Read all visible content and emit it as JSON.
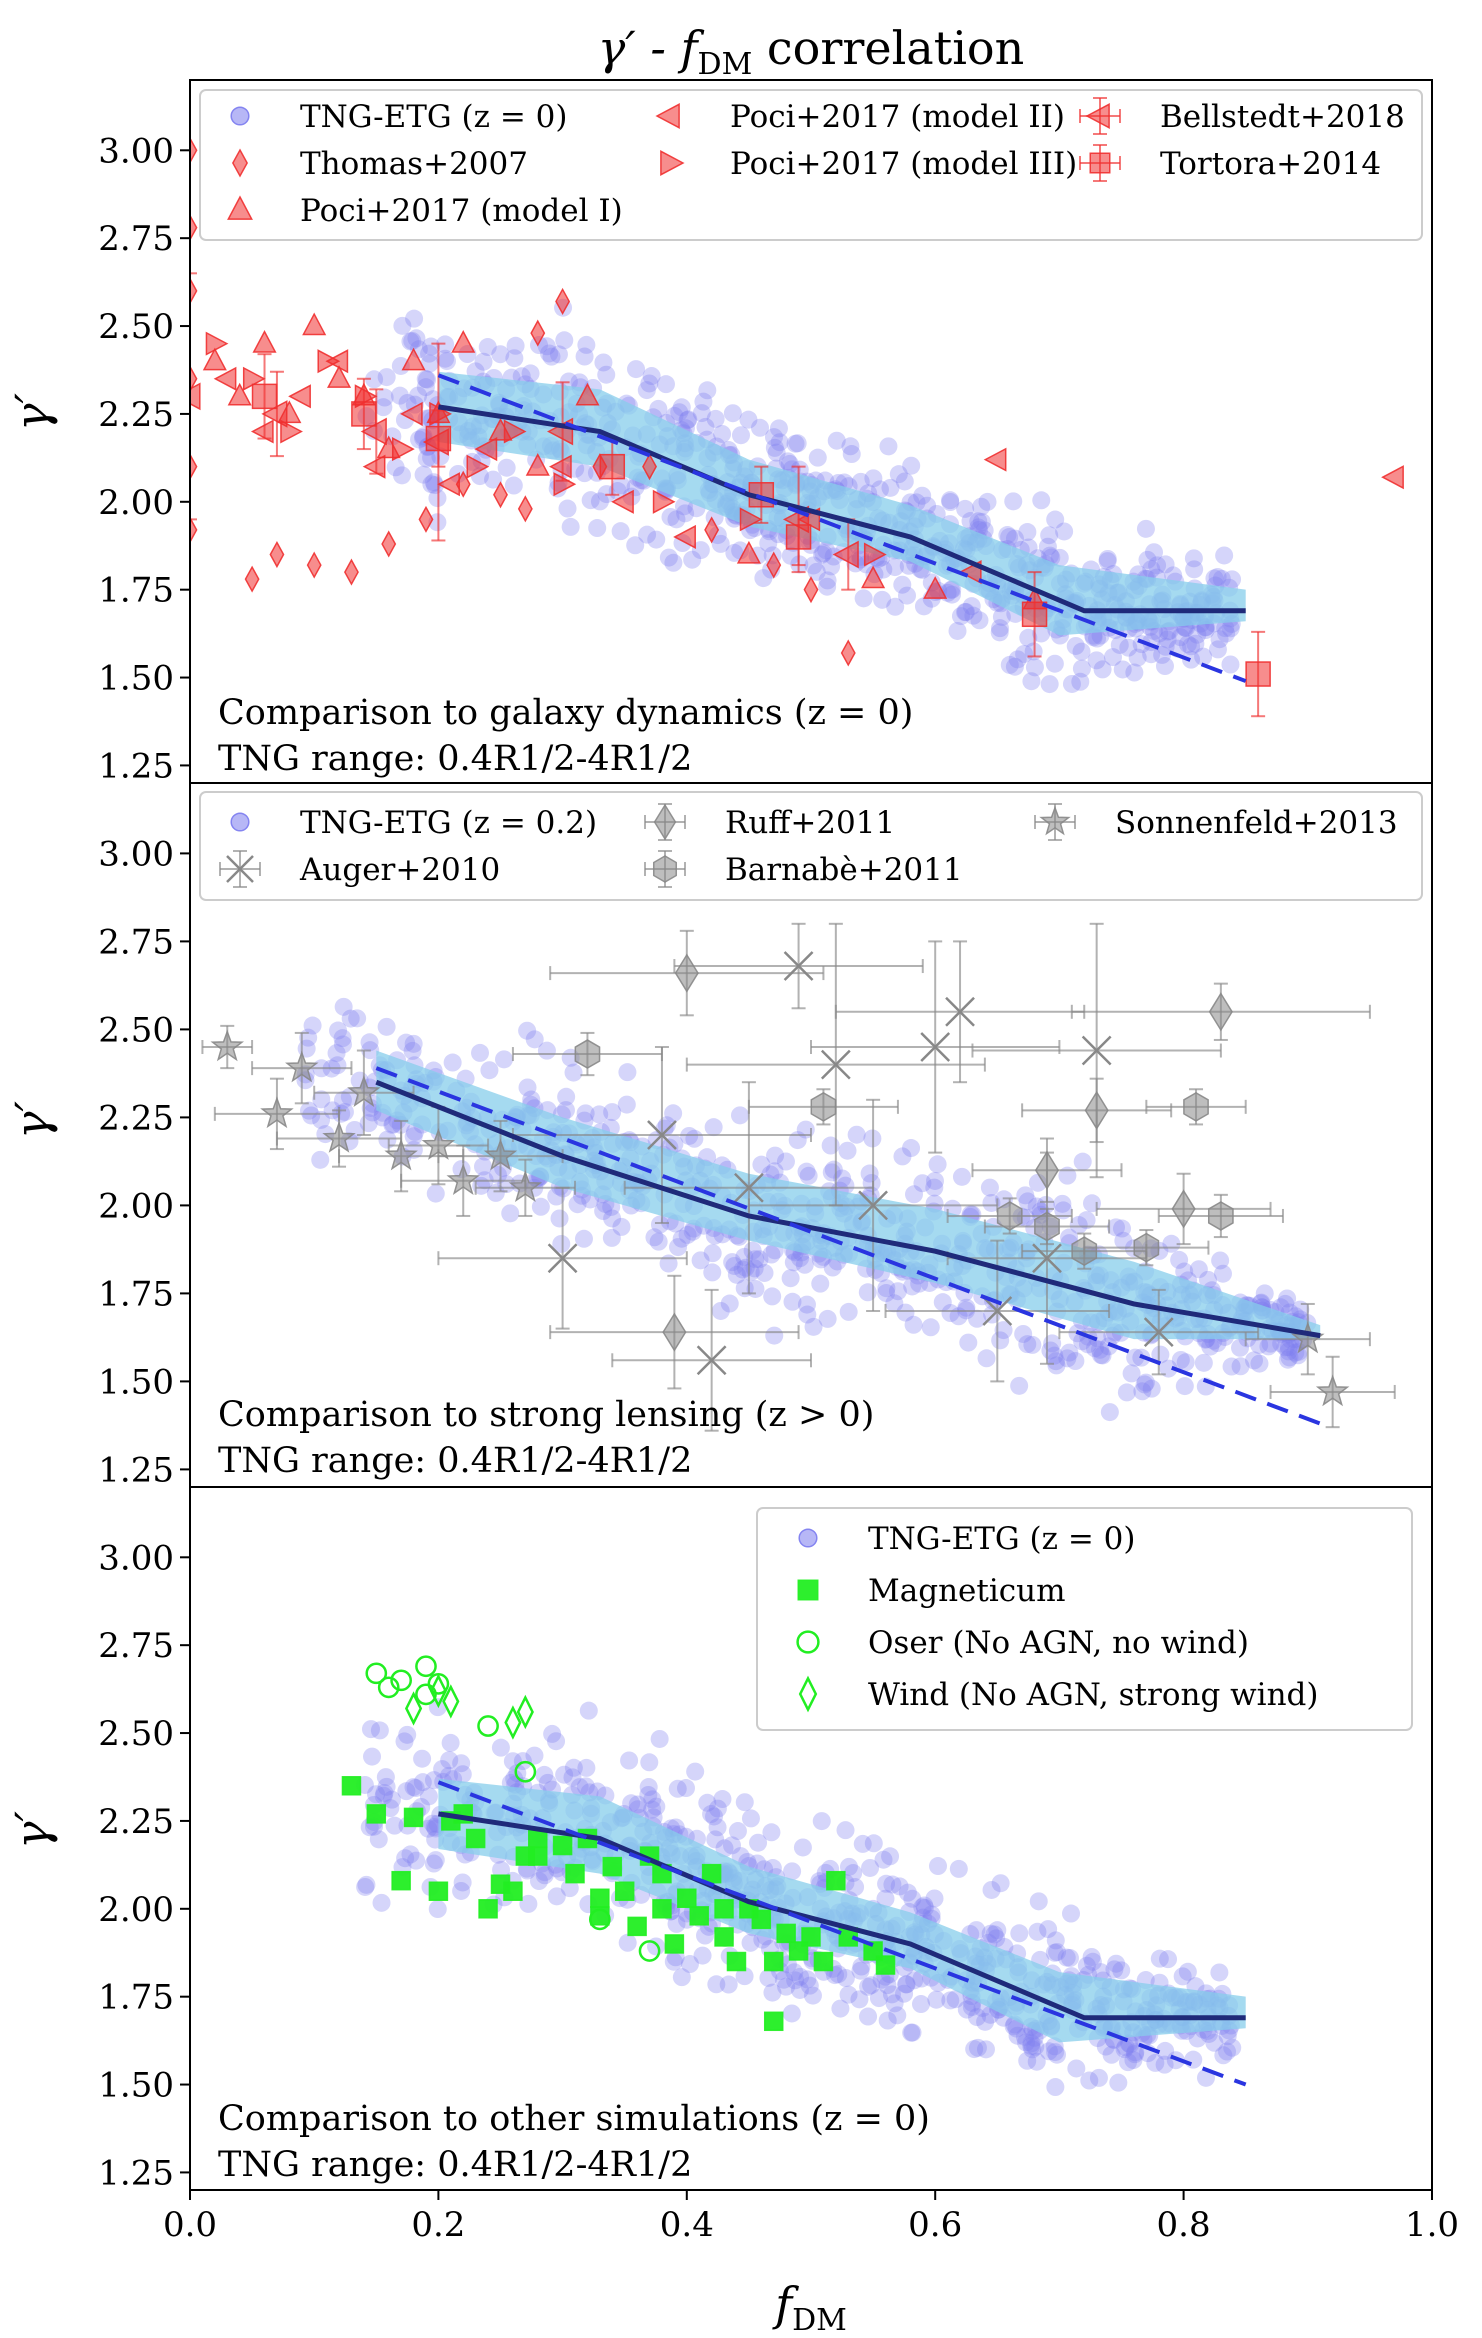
{
  "figure": {
    "title": "γ′ - f_DM correlation",
    "title_main": "γ′ - f",
    "title_sub": "DM",
    "title_tail": " correlation",
    "xlabel": "f_DM",
    "xlabel_main": "f",
    "xlabel_sub": "DM",
    "ylabel": "γ′",
    "x_ticks": [
      "0.0",
      "0.2",
      "0.4",
      "0.6",
      "0.8",
      "1.0"
    ],
    "y_ticks": [
      "1.25",
      "1.50",
      "1.75",
      "2.00",
      "2.25",
      "2.50",
      "2.75",
      "3.00"
    ],
    "colors": {
      "tng": "#7b7bef",
      "band": "#87ceeb",
      "median_line": "#1f2a7a",
      "fit_dashed": "#2a35e0",
      "observations_red": "#f03030",
      "lensing_gray": "#888888",
      "sims_green": "#22ee22"
    }
  },
  "panels": [
    {
      "id": "dynamics",
      "annotation_line1": "Comparison to galaxy dynamics (z = 0)",
      "annotation_line2": "TNG range: 0.4R1/2-4R1/2",
      "legend": [
        {
          "label": "TNG-ETG (z = 0)",
          "marker": "circle",
          "color": "#7b7bef"
        },
        {
          "label": "Thomas+2007",
          "marker": "thin-diamond",
          "color": "#f03030"
        },
        {
          "label": "Poci+2017 (model I)",
          "marker": "triangle-up",
          "color": "#f03030"
        },
        {
          "label": "Poci+2017 (model II)",
          "marker": "triangle-left",
          "color": "#f03030"
        },
        {
          "label": "Poci+2017 (model III)",
          "marker": "triangle-right",
          "color": "#f03030"
        },
        {
          "label": "Bellstedt+2018",
          "marker": "triangle-left-errorbar",
          "color": "#f03030"
        },
        {
          "label": "Tortora+2014",
          "marker": "square-errorbar",
          "color": "#f03030"
        }
      ]
    },
    {
      "id": "lensing",
      "annotation_line1": "Comparison to strong lensing (z > 0)",
      "annotation_line2": "TNG range: 0.4R1/2-4R1/2",
      "legend": [
        {
          "label": "TNG-ETG (z = 0.2)",
          "marker": "circle",
          "color": "#7b7bef"
        },
        {
          "label": "Auger+2010",
          "marker": "x-errorbar",
          "color": "#888888"
        },
        {
          "label": "Ruff+2011",
          "marker": "diamond-errorbar",
          "color": "#888888"
        },
        {
          "label": "Barnabè+2011",
          "marker": "hexagon-errorbar",
          "color": "#888888"
        },
        {
          "label": "Sonnenfeld+2013",
          "marker": "star-errorbar",
          "color": "#888888"
        }
      ]
    },
    {
      "id": "simulations",
      "annotation_line1": "Comparison to other simulations (z = 0)",
      "annotation_line2": "TNG range: 0.4R1/2-4R1/2",
      "legend": [
        {
          "label": "TNG-ETG (z = 0)",
          "marker": "circle",
          "color": "#7b7bef"
        },
        {
          "label": "Magneticum",
          "marker": "square",
          "color": "#22ee22"
        },
        {
          "label": "Oser (No AGN, no wind)",
          "marker": "open-circle",
          "color": "#22ee22"
        },
        {
          "label": "Wind (No AGN, strong wind)",
          "marker": "open-diamond",
          "color": "#22ee22"
        }
      ]
    }
  ],
  "chart_data": [
    {
      "type": "scatter",
      "panel": "dynamics",
      "title": "γ′ - f_DM correlation",
      "xlabel": "",
      "ylabel": "γ′",
      "xlim": [
        0.0,
        1.0
      ],
      "ylim": [
        1.2,
        3.2
      ],
      "series": [
        {
          "name": "TNG median",
          "style": "line",
          "x": [
            0.2,
            0.33,
            0.45,
            0.58,
            0.72,
            0.85
          ],
          "y": [
            2.27,
            2.2,
            2.02,
            1.9,
            1.69,
            1.69
          ]
        },
        {
          "name": "TNG fit",
          "style": "dashed",
          "x": [
            0.2,
            0.85
          ],
          "y": [
            2.36,
            1.49
          ]
        },
        {
          "name": "TNG 1σ band",
          "style": "band",
          "x": [
            0.2,
            0.33,
            0.45,
            0.58,
            0.7,
            0.85
          ],
          "y_low": [
            2.17,
            2.1,
            1.93,
            1.83,
            1.62,
            1.66
          ],
          "y_high": [
            2.37,
            2.32,
            2.12,
            1.99,
            1.82,
            1.75
          ]
        },
        {
          "name": "Thomas+2007",
          "style": "thin-diamond",
          "x": [
            0.0,
            0.0,
            0.0,
            0.0,
            0.0,
            0.0,
            0.05,
            0.07,
            0.1,
            0.13,
            0.16,
            0.19,
            0.22,
            0.25,
            0.27,
            0.28,
            0.3,
            0.37,
            0.42,
            0.47,
            0.53,
            0.5,
            0.33
          ],
          "y": [
            3.0,
            2.78,
            2.6,
            2.35,
            2.1,
            1.92,
            1.78,
            1.85,
            1.82,
            1.8,
            1.88,
            1.95,
            2.05,
            2.02,
            1.98,
            2.48,
            2.57,
            2.1,
            1.92,
            1.82,
            1.57,
            1.75,
            2.1
          ]
        },
        {
          "name": "Poci+2017 (model I)",
          "style": "triangle-up",
          "x": [
            0.02,
            0.04,
            0.06,
            0.08,
            0.1,
            0.12,
            0.14,
            0.16,
            0.18,
            0.2,
            0.22,
            0.25,
            0.28,
            0.32,
            0.45,
            0.55,
            0.6,
            0.68
          ],
          "y": [
            2.4,
            2.3,
            2.45,
            2.25,
            2.5,
            2.35,
            2.3,
            2.15,
            2.4,
            2.25,
            2.45,
            2.2,
            2.1,
            2.3,
            1.85,
            1.78,
            1.75,
            1.72
          ]
        },
        {
          "name": "Poci+2017 (model II)",
          "style": "triangle-left",
          "x": [
            0.03,
            0.06,
            0.09,
            0.12,
            0.15,
            0.18,
            0.21,
            0.24,
            0.3,
            0.35,
            0.4,
            0.5,
            0.63,
            0.65,
            0.97
          ],
          "y": [
            2.35,
            2.2,
            2.3,
            2.4,
            2.1,
            2.25,
            2.05,
            2.15,
            2.1,
            2.0,
            1.9,
            1.95,
            1.8,
            2.12,
            2.07
          ]
        },
        {
          "name": "Poci+2017 (model III)",
          "style": "triangle-right",
          "x": [
            0.02,
            0.05,
            0.08,
            0.11,
            0.14,
            0.17,
            0.2,
            0.23,
            0.26,
            0.3,
            0.38,
            0.45,
            0.55
          ],
          "y": [
            2.45,
            2.35,
            2.2,
            2.4,
            2.3,
            2.15,
            2.25,
            2.1,
            2.2,
            2.05,
            2.0,
            1.95,
            1.85
          ]
        },
        {
          "name": "Bellstedt+2018",
          "style": "triangle-left-errorbar",
          "x": [
            0.0,
            0.07,
            0.15,
            0.2,
            0.3,
            0.49,
            0.53
          ],
          "y": [
            2.3,
            2.25,
            2.2,
            2.17,
            2.2,
            1.95,
            1.85
          ],
          "yerr": [
            0.35,
            0.12,
            0.12,
            0.28,
            0.14,
            0.15,
            0.1
          ]
        },
        {
          "name": "Tortora+2014",
          "style": "square-errorbar",
          "x": [
            0.06,
            0.14,
            0.2,
            0.34,
            0.46,
            0.49,
            0.68,
            0.86
          ],
          "y": [
            2.3,
            2.25,
            2.18,
            2.1,
            2.02,
            1.9,
            1.68,
            1.51
          ],
          "yerr": [
            0.12,
            0.1,
            0.08,
            0.08,
            0.08,
            0.08,
            0.12,
            0.12
          ]
        }
      ]
    },
    {
      "type": "scatter",
      "panel": "lensing",
      "xlabel": "",
      "ylabel": "γ′",
      "xlim": [
        0.0,
        1.0
      ],
      "ylim": [
        1.2,
        3.2
      ],
      "series": [
        {
          "name": "TNG median",
          "style": "line",
          "x": [
            0.15,
            0.3,
            0.45,
            0.6,
            0.76,
            0.91
          ],
          "y": [
            2.35,
            2.14,
            1.97,
            1.87,
            1.72,
            1.63
          ]
        },
        {
          "name": "TNG fit",
          "style": "dashed",
          "x": [
            0.15,
            0.91
          ],
          "y": [
            2.39,
            1.38
          ]
        },
        {
          "name": "TNG 1σ band",
          "style": "band",
          "x": [
            0.15,
            0.3,
            0.45,
            0.6,
            0.76,
            0.91
          ],
          "y_low": [
            2.27,
            2.05,
            1.9,
            1.78,
            1.62,
            1.62
          ],
          "y_high": [
            2.44,
            2.25,
            2.09,
            1.99,
            1.84,
            1.66
          ]
        },
        {
          "name": "Auger+2010",
          "style": "x-errorbar",
          "x": [
            0.3,
            0.38,
            0.42,
            0.45,
            0.49,
            0.52,
            0.55,
            0.6,
            0.62,
            0.65,
            0.69,
            0.73,
            0.78
          ],
          "y": [
            1.85,
            2.2,
            1.56,
            2.05,
            2.68,
            2.4,
            2.0,
            2.45,
            2.55,
            1.7,
            1.85,
            2.44,
            1.64
          ],
          "xerr": [
            0.1,
            0.12,
            0.08,
            0.1,
            0.1,
            0.12,
            0.1,
            0.1,
            0.1,
            0.09,
            0.08,
            0.1,
            0.08
          ],
          "yerr": [
            0.2,
            0.25,
            0.2,
            0.3,
            0.12,
            0.4,
            0.3,
            0.3,
            0.2,
            0.2,
            0.3,
            0.36,
            0.12
          ]
        },
        {
          "name": "Ruff+2011",
          "style": "diamond-errorbar",
          "x": [
            0.39,
            0.4,
            0.69,
            0.73,
            0.8,
            0.83
          ],
          "y": [
            1.64,
            2.66,
            2.1,
            2.27,
            1.99,
            2.55
          ],
          "xerr": [
            0.1,
            0.11,
            0.06,
            0.06,
            0.07,
            0.12
          ],
          "yerr": [
            0.16,
            0.12,
            0.09,
            0.09,
            0.1,
            0.08
          ]
        },
        {
          "name": "Barnabè+2011",
          "style": "hexagon-errorbar",
          "x": [
            0.32,
            0.51,
            0.66,
            0.69,
            0.72,
            0.77,
            0.81,
            0.83
          ],
          "y": [
            2.43,
            2.28,
            1.97,
            1.94,
            1.87,
            1.88,
            2.28,
            1.97
          ],
          "xerr": [
            0.06,
            0.06,
            0.05,
            0.05,
            0.05,
            0.05,
            0.04,
            0.05
          ],
          "yerr": [
            0.06,
            0.05,
            0.05,
            0.05,
            0.05,
            0.05,
            0.05,
            0.06
          ]
        },
        {
          "name": "Sonnenfeld+2013",
          "style": "star-errorbar",
          "x": [
            0.03,
            0.07,
            0.09,
            0.12,
            0.14,
            0.17,
            0.2,
            0.22,
            0.25,
            0.27,
            0.9,
            0.92
          ],
          "y": [
            2.45,
            2.26,
            2.39,
            2.19,
            2.32,
            2.14,
            2.17,
            2.07,
            2.14,
            2.05,
            1.62,
            1.47
          ],
          "xerr": [
            0.02,
            0.05,
            0.04,
            0.05,
            0.04,
            0.05,
            0.04,
            0.05,
            0.05,
            0.04,
            0.05,
            0.05
          ],
          "yerr": [
            0.06,
            0.1,
            0.1,
            0.08,
            0.12,
            0.1,
            0.11,
            0.1,
            0.1,
            0.08,
            0.1,
            0.1
          ]
        }
      ]
    },
    {
      "type": "scatter",
      "panel": "simulations",
      "xlabel": "f_DM",
      "ylabel": "γ′",
      "xlim": [
        0.0,
        1.0
      ],
      "ylim": [
        1.2,
        3.2
      ],
      "series": [
        {
          "name": "TNG median",
          "style": "line",
          "x": [
            0.2,
            0.33,
            0.45,
            0.58,
            0.72,
            0.85
          ],
          "y": [
            2.27,
            2.2,
            2.02,
            1.9,
            1.69,
            1.69
          ]
        },
        {
          "name": "TNG fit",
          "style": "dashed",
          "x": [
            0.2,
            0.85
          ],
          "y": [
            2.36,
            1.5
          ]
        },
        {
          "name": "TNG 1σ band",
          "style": "band",
          "x": [
            0.2,
            0.33,
            0.45,
            0.58,
            0.7,
            0.85
          ],
          "y_low": [
            2.17,
            2.1,
            1.93,
            1.83,
            1.62,
            1.66
          ],
          "y_high": [
            2.37,
            2.32,
            2.12,
            1.99,
            1.82,
            1.75
          ]
        },
        {
          "name": "Magneticum",
          "style": "square",
          "x": [
            0.13,
            0.15,
            0.17,
            0.18,
            0.2,
            0.21,
            0.23,
            0.24,
            0.26,
            0.27,
            0.28,
            0.3,
            0.31,
            0.32,
            0.33,
            0.34,
            0.35,
            0.36,
            0.37,
            0.38,
            0.39,
            0.4,
            0.41,
            0.42,
            0.43,
            0.44,
            0.45,
            0.46,
            0.47,
            0.48,
            0.49,
            0.5,
            0.51,
            0.52,
            0.53,
            0.55,
            0.56,
            0.25,
            0.28,
            0.22,
            0.33,
            0.38,
            0.43,
            0.47
          ],
          "y": [
            2.35,
            2.27,
            2.08,
            2.26,
            2.05,
            2.25,
            2.2,
            2.0,
            2.05,
            2.15,
            2.2,
            2.18,
            2.1,
            2.2,
            2.03,
            2.12,
            2.05,
            1.95,
            2.15,
            2.0,
            1.9,
            2.03,
            1.98,
            2.1,
            1.92,
            1.85,
            2.0,
            1.97,
            1.85,
            1.93,
            1.88,
            1.92,
            1.85,
            2.08,
            1.92,
            1.88,
            1.84,
            2.07,
            2.15,
            2.27,
            1.98,
            2.1,
            2.0,
            1.68
          ]
        },
        {
          "name": "Oser (No AGN, no wind)",
          "style": "open-circle",
          "x": [
            0.15,
            0.16,
            0.17,
            0.19,
            0.19,
            0.2,
            0.24,
            0.27,
            0.33,
            0.37
          ],
          "y": [
            2.67,
            2.63,
            2.65,
            2.69,
            2.61,
            2.64,
            2.52,
            2.39,
            1.97,
            1.88
          ]
        },
        {
          "name": "Wind (No AGN, strong wind)",
          "style": "open-diamond",
          "x": [
            0.18,
            0.2,
            0.21,
            0.26,
            0.27
          ],
          "y": [
            2.57,
            2.62,
            2.59,
            2.53,
            2.56
          ]
        }
      ]
    }
  ]
}
